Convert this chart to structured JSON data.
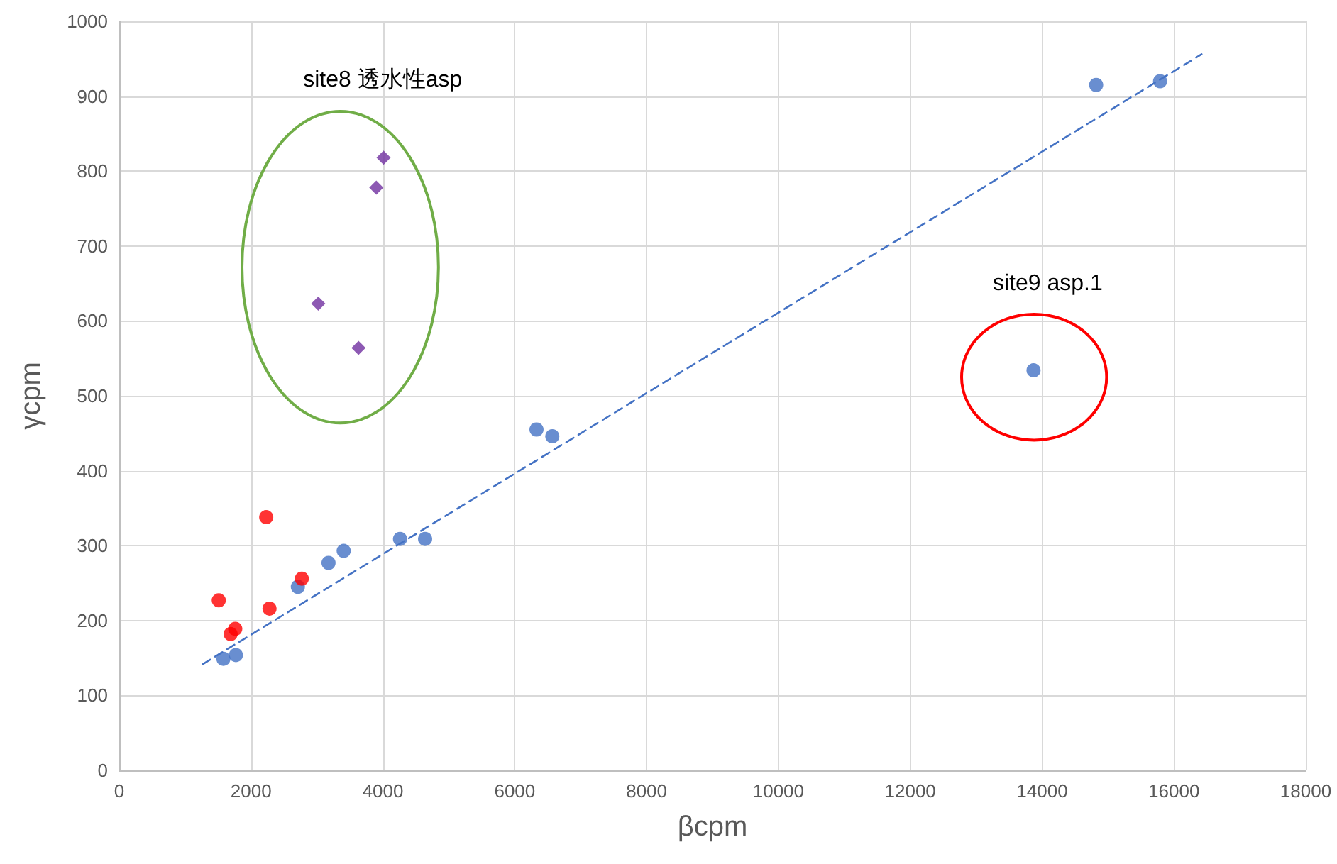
{
  "chart_data": {
    "type": "scatter",
    "xlabel": "βcpm",
    "ylabel": "γcpm",
    "xlim": [
      0,
      18000
    ],
    "xticks": [
      0,
      2000,
      4000,
      6000,
      8000,
      10000,
      12000,
      14000,
      16000,
      18000
    ],
    "ylim": [
      0,
      1000
    ],
    "yticks": [
      0,
      100,
      200,
      300,
      400,
      500,
      600,
      700,
      800,
      900,
      1000
    ],
    "grid": true,
    "series": [
      {
        "color": "#4472c4",
        "marker": "circle",
        "x": [
          1580,
          1770,
          2710,
          3175,
          3405,
          4260,
          4640,
          6330,
          6570,
          13870,
          14820,
          15790
        ],
        "values": [
          149,
          154,
          245,
          277,
          293,
          309,
          309,
          455,
          446,
          534,
          915,
          920
        ]
      },
      {
        "color": "#ff0000",
        "marker": "circle",
        "x": [
          1510,
          1690,
          1760,
          2230,
          2280,
          2770
        ],
        "values": [
          227,
          182,
          189,
          338,
          216,
          256
        ]
      },
      {
        "color": "#7030a0",
        "marker": "diamond",
        "x": [
          3020,
          3630,
          3900,
          4010
        ],
        "values": [
          623,
          564,
          778,
          818
        ]
      },
      {
        "type": "line",
        "color": "#4472c4",
        "marker": "none",
        "line_style": "dashed",
        "x": [
          1270,
          16420
        ],
        "values": [
          142,
          956
        ]
      }
    ],
    "annotations": [
      "site8 透水性asp",
      "site9 asp.1"
    ]
  }
}
